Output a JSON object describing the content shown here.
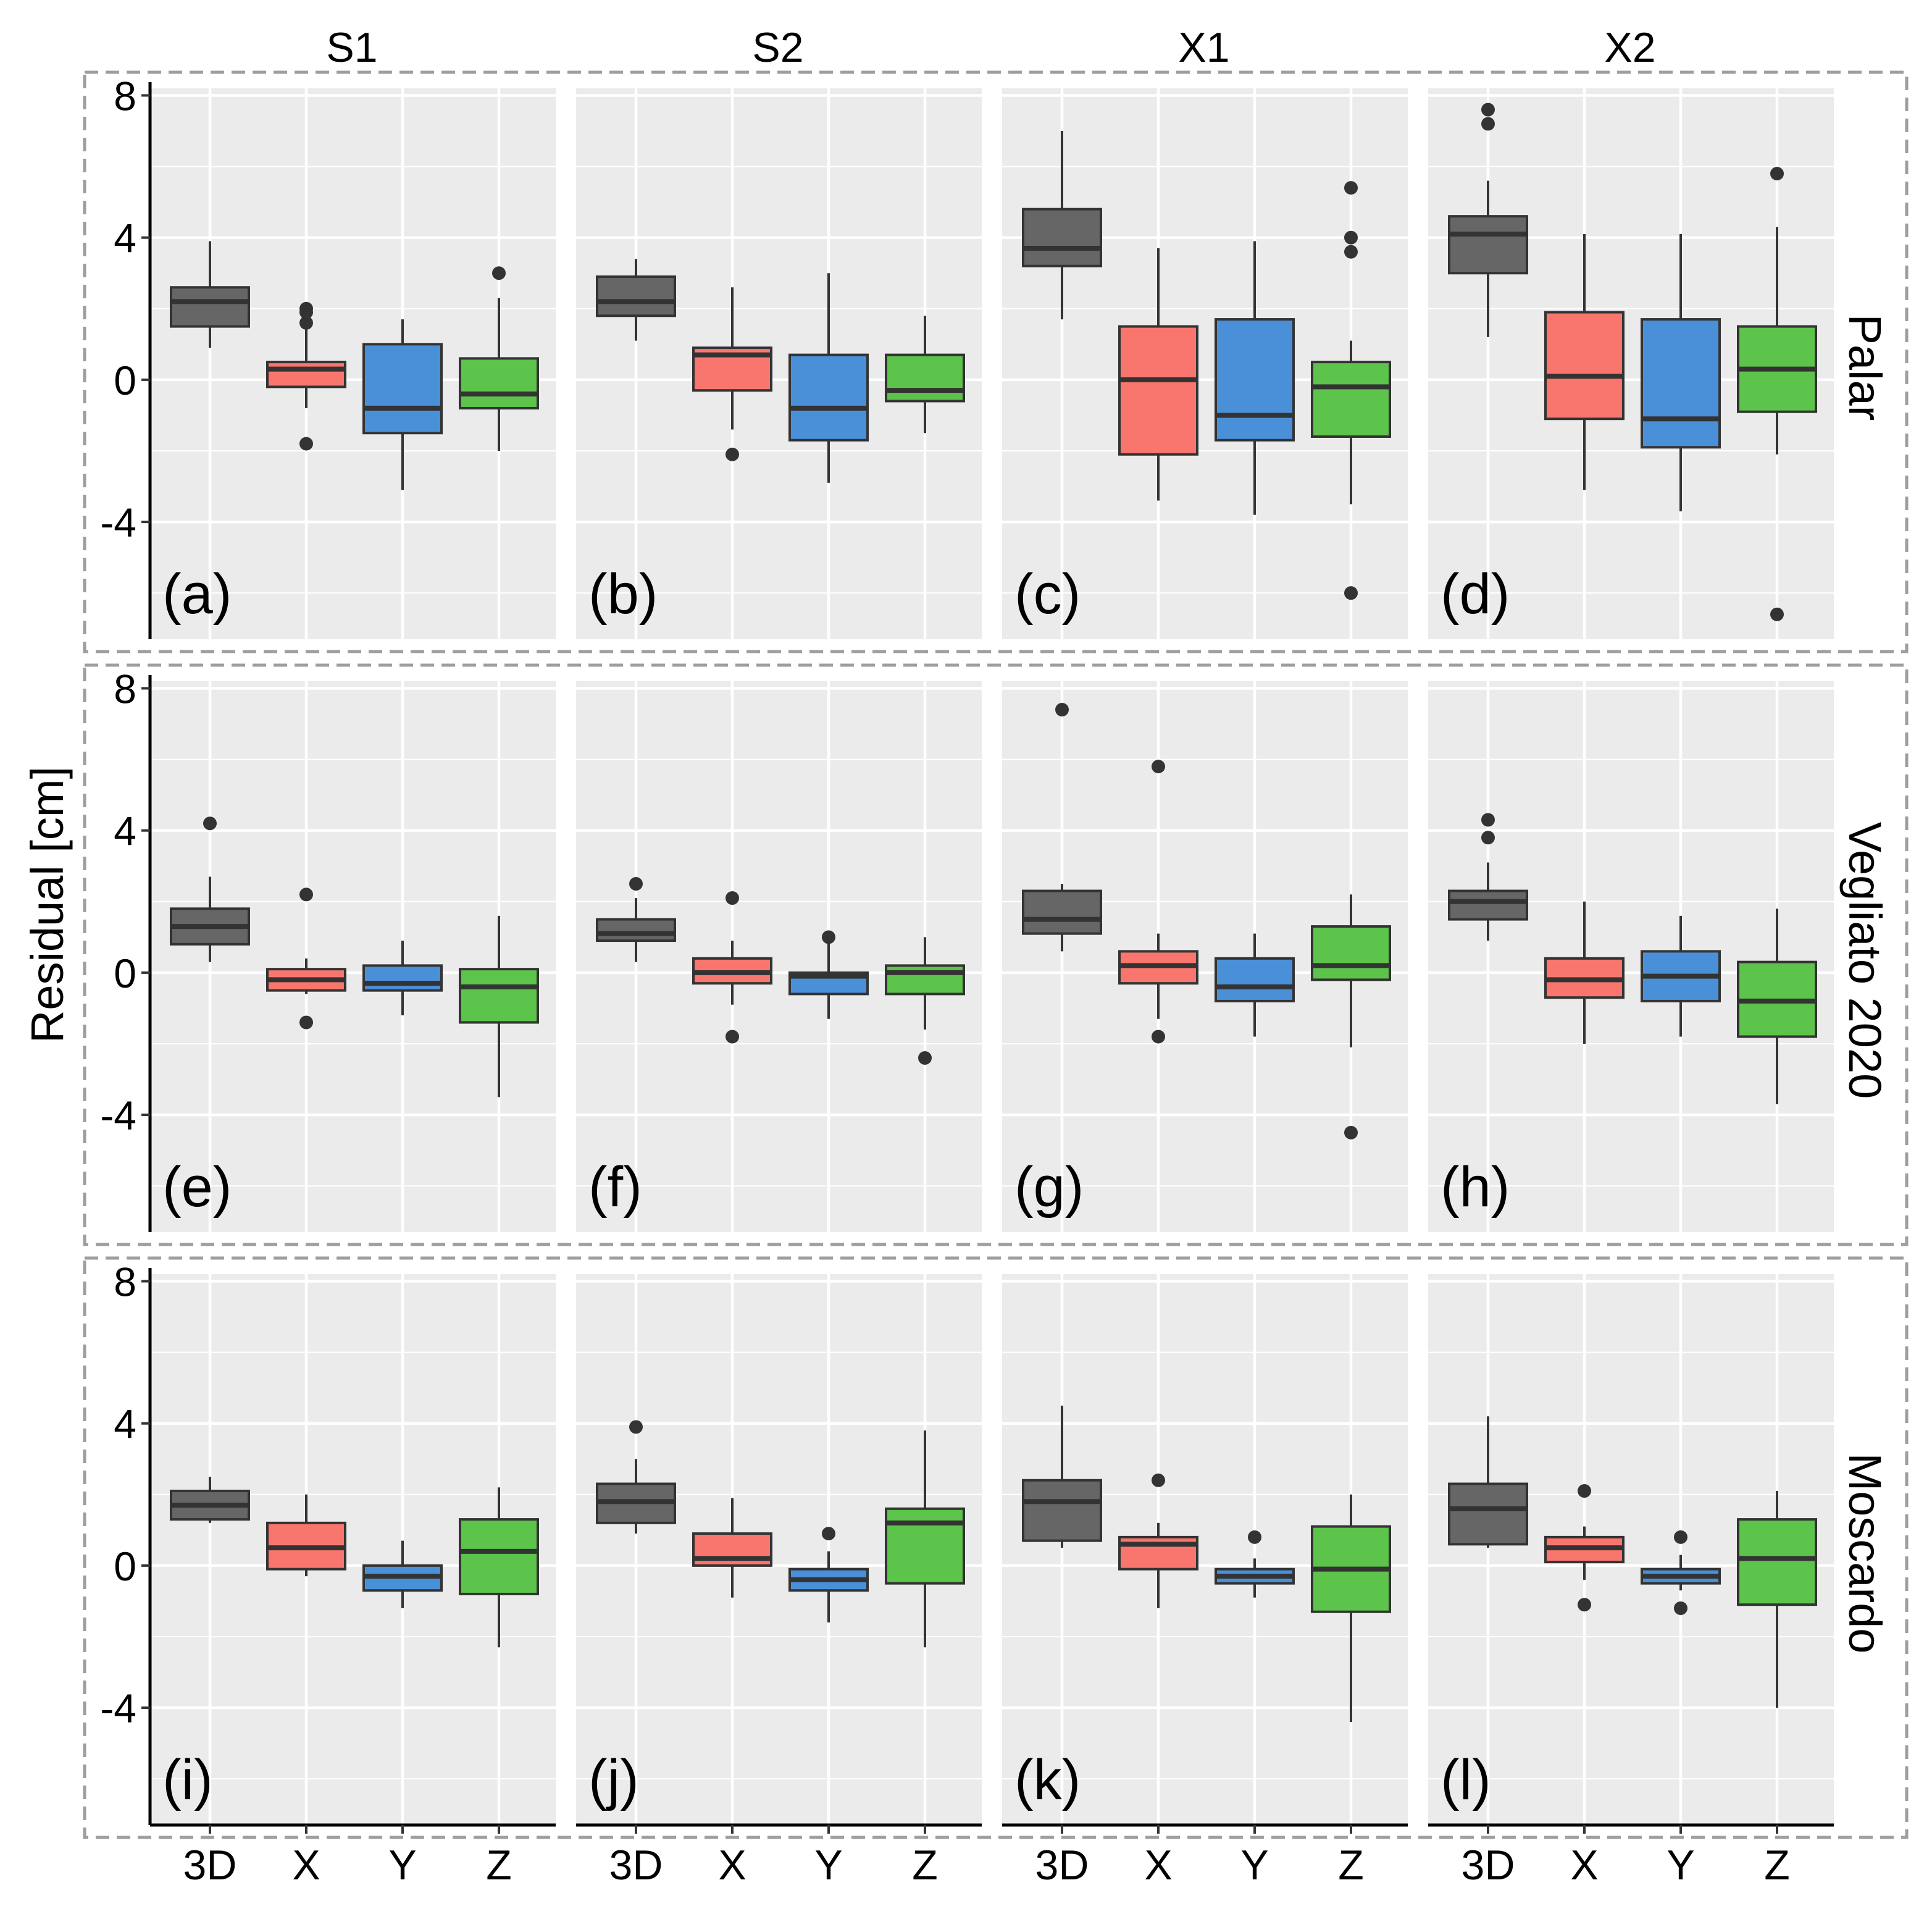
{
  "chart_data": {
    "type": "box",
    "ylabel": "Residual [cm]",
    "ylim": [
      -7.3,
      8.2
    ],
    "yticks": [
      8,
      4,
      0,
      -4
    ],
    "ytick_labels": [
      "8",
      "4",
      "0",
      "-4"
    ],
    "columns": [
      "S1",
      "S2",
      "X1",
      "X2"
    ],
    "rows": [
      "Palar",
      "Vegliato 2020",
      "Moscardo"
    ],
    "categories": [
      "3D",
      "X",
      "Y",
      "Z"
    ],
    "grid": true,
    "legend": "none",
    "colors": {
      "3D": "#666666",
      "X": "#F8766D",
      "Y": "#4A90D9",
      "Z": "#5CC44A",
      "panel_bg": "#EBEBEB",
      "grid": "#FFFFFF",
      "frame": "#9E9E9E",
      "outline": "#333333"
    },
    "panels": [
      {
        "row": 0,
        "col": 0,
        "label": "(a)",
        "boxes": [
          {
            "cat": "3D",
            "whisker_low": 0.9,
            "q1": 1.5,
            "median": 2.2,
            "q3": 2.6,
            "whisker_high": 3.9,
            "outliers": []
          },
          {
            "cat": "X",
            "whisker_low": -0.8,
            "q1": -0.2,
            "median": 0.3,
            "q3": 0.5,
            "whisker_high": 1.6,
            "outliers": [
              2.0,
              1.9,
              1.6,
              -1.8
            ]
          },
          {
            "cat": "Y",
            "whisker_low": -3.1,
            "q1": -1.5,
            "median": -0.8,
            "q3": 1.0,
            "whisker_high": 1.7,
            "outliers": []
          },
          {
            "cat": "Z",
            "whisker_low": -2.0,
            "q1": -0.8,
            "median": -0.4,
            "q3": 0.6,
            "whisker_high": 2.3,
            "outliers": [
              3.0
            ]
          }
        ]
      },
      {
        "row": 0,
        "col": 1,
        "label": "(b)",
        "boxes": [
          {
            "cat": "3D",
            "whisker_low": 1.1,
            "q1": 1.8,
            "median": 2.2,
            "q3": 2.9,
            "whisker_high": 3.4,
            "outliers": []
          },
          {
            "cat": "X",
            "whisker_low": -1.4,
            "q1": -0.3,
            "median": 0.7,
            "q3": 0.9,
            "whisker_high": 2.6,
            "outliers": [
              -2.1
            ]
          },
          {
            "cat": "Y",
            "whisker_low": -2.9,
            "q1": -1.7,
            "median": -0.8,
            "q3": 0.7,
            "whisker_high": 3.0,
            "outliers": []
          },
          {
            "cat": "Z",
            "whisker_low": -1.5,
            "q1": -0.6,
            "median": -0.3,
            "q3": 0.7,
            "whisker_high": 1.8,
            "outliers": []
          }
        ]
      },
      {
        "row": 0,
        "col": 2,
        "label": "(c)",
        "boxes": [
          {
            "cat": "3D",
            "whisker_low": 1.7,
            "q1": 3.2,
            "median": 3.7,
            "q3": 4.8,
            "whisker_high": 7.0,
            "outliers": []
          },
          {
            "cat": "X",
            "whisker_low": -3.4,
            "q1": -2.1,
            "median": 0.0,
            "q3": 1.5,
            "whisker_high": 3.7,
            "outliers": []
          },
          {
            "cat": "Y",
            "whisker_low": -3.8,
            "q1": -1.7,
            "median": -1.0,
            "q3": 1.7,
            "whisker_high": 3.9,
            "outliers": []
          },
          {
            "cat": "Z",
            "whisker_low": -3.5,
            "q1": -1.6,
            "median": -0.2,
            "q3": 0.5,
            "whisker_high": 1.1,
            "outliers": [
              5.4,
              4.0,
              3.6,
              -6.0
            ]
          }
        ]
      },
      {
        "row": 0,
        "col": 3,
        "label": "(d)",
        "boxes": [
          {
            "cat": "3D",
            "whisker_low": 1.2,
            "q1": 3.0,
            "median": 4.1,
            "q3": 4.6,
            "whisker_high": 5.6,
            "outliers": [
              7.6,
              7.2
            ]
          },
          {
            "cat": "X",
            "whisker_low": -3.1,
            "q1": -1.1,
            "median": 0.1,
            "q3": 1.9,
            "whisker_high": 4.1,
            "outliers": []
          },
          {
            "cat": "Y",
            "whisker_low": -3.7,
            "q1": -1.9,
            "median": -1.1,
            "q3": 1.7,
            "whisker_high": 4.1,
            "outliers": []
          },
          {
            "cat": "Z",
            "whisker_low": -2.1,
            "q1": -0.9,
            "median": 0.3,
            "q3": 1.5,
            "whisker_high": 4.3,
            "outliers": [
              5.8,
              -6.6
            ]
          }
        ]
      },
      {
        "row": 1,
        "col": 0,
        "label": "(e)",
        "boxes": [
          {
            "cat": "3D",
            "whisker_low": 0.3,
            "q1": 0.8,
            "median": 1.3,
            "q3": 1.8,
            "whisker_high": 2.7,
            "outliers": [
              4.2
            ]
          },
          {
            "cat": "X",
            "whisker_low": -0.6,
            "q1": -0.5,
            "median": -0.2,
            "q3": 0.1,
            "whisker_high": 0.4,
            "outliers": [
              2.2,
              -1.4
            ]
          },
          {
            "cat": "Y",
            "whisker_low": -1.2,
            "q1": -0.5,
            "median": -0.3,
            "q3": 0.2,
            "whisker_high": 0.9,
            "outliers": []
          },
          {
            "cat": "Z",
            "whisker_low": -3.5,
            "q1": -1.4,
            "median": -0.4,
            "q3": 0.1,
            "whisker_high": 1.6,
            "outliers": []
          }
        ]
      },
      {
        "row": 1,
        "col": 1,
        "label": "(f)",
        "boxes": [
          {
            "cat": "3D",
            "whisker_low": 0.3,
            "q1": 0.9,
            "median": 1.1,
            "q3": 1.5,
            "whisker_high": 2.1,
            "outliers": [
              2.5
            ]
          },
          {
            "cat": "X",
            "whisker_low": -0.9,
            "q1": -0.3,
            "median": 0.0,
            "q3": 0.4,
            "whisker_high": 0.9,
            "outliers": [
              2.1,
              -1.8
            ]
          },
          {
            "cat": "Y",
            "whisker_low": -1.3,
            "q1": -0.6,
            "median": -0.1,
            "q3": 0.0,
            "whisker_high": 0.9,
            "outliers": [
              1.0
            ]
          },
          {
            "cat": "Z",
            "whisker_low": -1.6,
            "q1": -0.6,
            "median": 0.0,
            "q3": 0.2,
            "whisker_high": 1.0,
            "outliers": [
              -2.4
            ]
          }
        ]
      },
      {
        "row": 1,
        "col": 2,
        "label": "(g)",
        "boxes": [
          {
            "cat": "3D",
            "whisker_low": 0.6,
            "q1": 1.1,
            "median": 1.5,
            "q3": 2.3,
            "whisker_high": 2.5,
            "outliers": [
              7.4
            ]
          },
          {
            "cat": "X",
            "whisker_low": -1.3,
            "q1": -0.3,
            "median": 0.2,
            "q3": 0.6,
            "whisker_high": 1.1,
            "outliers": [
              5.8,
              -1.8
            ]
          },
          {
            "cat": "Y",
            "whisker_low": -1.8,
            "q1": -0.8,
            "median": -0.4,
            "q3": 0.4,
            "whisker_high": 1.1,
            "outliers": []
          },
          {
            "cat": "Z",
            "whisker_low": -2.1,
            "q1": -0.2,
            "median": 0.2,
            "q3": 1.3,
            "whisker_high": 2.2,
            "outliers": [
              -4.5
            ]
          }
        ]
      },
      {
        "row": 1,
        "col": 3,
        "label": "(h)",
        "boxes": [
          {
            "cat": "3D",
            "whisker_low": 0.9,
            "q1": 1.5,
            "median": 2.0,
            "q3": 2.3,
            "whisker_high": 3.1,
            "outliers": [
              4.3,
              3.8
            ]
          },
          {
            "cat": "X",
            "whisker_low": -2.0,
            "q1": -0.7,
            "median": -0.2,
            "q3": 0.4,
            "whisker_high": 2.0,
            "outliers": []
          },
          {
            "cat": "Y",
            "whisker_low": -1.8,
            "q1": -0.8,
            "median": -0.1,
            "q3": 0.6,
            "whisker_high": 1.6,
            "outliers": []
          },
          {
            "cat": "Z",
            "whisker_low": -3.7,
            "q1": -1.8,
            "median": -0.8,
            "q3": 0.3,
            "whisker_high": 1.8,
            "outliers": []
          }
        ]
      },
      {
        "row": 2,
        "col": 0,
        "label": "(i)",
        "boxes": [
          {
            "cat": "3D",
            "whisker_low": 1.2,
            "q1": 1.3,
            "median": 1.7,
            "q3": 2.1,
            "whisker_high": 2.5,
            "outliers": []
          },
          {
            "cat": "X",
            "whisker_low": -0.3,
            "q1": -0.1,
            "median": 0.5,
            "q3": 1.2,
            "whisker_high": 2.0,
            "outliers": []
          },
          {
            "cat": "Y",
            "whisker_low": -1.2,
            "q1": -0.7,
            "median": -0.3,
            "q3": 0.0,
            "whisker_high": 0.7,
            "outliers": []
          },
          {
            "cat": "Z",
            "whisker_low": -2.3,
            "q1": -0.8,
            "median": 0.4,
            "q3": 1.3,
            "whisker_high": 2.2,
            "outliers": []
          }
        ]
      },
      {
        "row": 2,
        "col": 1,
        "label": "(j)",
        "boxes": [
          {
            "cat": "3D",
            "whisker_low": 0.9,
            "q1": 1.2,
            "median": 1.8,
            "q3": 2.3,
            "whisker_high": 3.0,
            "outliers": [
              3.9
            ]
          },
          {
            "cat": "X",
            "whisker_low": -0.9,
            "q1": 0.0,
            "median": 0.2,
            "q3": 0.9,
            "whisker_high": 1.9,
            "outliers": []
          },
          {
            "cat": "Y",
            "whisker_low": -1.6,
            "q1": -0.7,
            "median": -0.4,
            "q3": -0.1,
            "whisker_high": 0.4,
            "outliers": [
              0.9
            ]
          },
          {
            "cat": "Z",
            "whisker_low": -2.3,
            "q1": -0.5,
            "median": 1.2,
            "q3": 1.6,
            "whisker_high": 3.8,
            "outliers": []
          }
        ]
      },
      {
        "row": 2,
        "col": 2,
        "label": "(k)",
        "boxes": [
          {
            "cat": "3D",
            "whisker_low": 0.5,
            "q1": 0.7,
            "median": 1.8,
            "q3": 2.4,
            "whisker_high": 4.5,
            "outliers": []
          },
          {
            "cat": "X",
            "whisker_low": -1.2,
            "q1": -0.1,
            "median": 0.6,
            "q3": 0.8,
            "whisker_high": 1.2,
            "outliers": [
              2.4
            ]
          },
          {
            "cat": "Y",
            "whisker_low": -0.9,
            "q1": -0.5,
            "median": -0.3,
            "q3": -0.1,
            "whisker_high": 0.2,
            "outliers": [
              0.8
            ]
          },
          {
            "cat": "Z",
            "whisker_low": -4.4,
            "q1": -1.3,
            "median": -0.1,
            "q3": 1.1,
            "whisker_high": 2.0,
            "outliers": []
          }
        ]
      },
      {
        "row": 2,
        "col": 3,
        "label": "(l)",
        "boxes": [
          {
            "cat": "3D",
            "whisker_low": 0.5,
            "q1": 0.6,
            "median": 1.6,
            "q3": 2.3,
            "whisker_high": 4.2,
            "outliers": []
          },
          {
            "cat": "X",
            "whisker_low": -0.4,
            "q1": 0.1,
            "median": 0.5,
            "q3": 0.8,
            "whisker_high": 1.1,
            "outliers": [
              2.1,
              -1.1
            ]
          },
          {
            "cat": "Y",
            "whisker_low": -0.7,
            "q1": -0.5,
            "median": -0.3,
            "q3": -0.1,
            "whisker_high": 0.3,
            "outliers": [
              0.8,
              -1.2
            ]
          },
          {
            "cat": "Z",
            "whisker_low": -4.0,
            "q1": -1.1,
            "median": 0.2,
            "q3": 1.3,
            "whisker_high": 2.1,
            "outliers": []
          }
        ]
      }
    ]
  }
}
